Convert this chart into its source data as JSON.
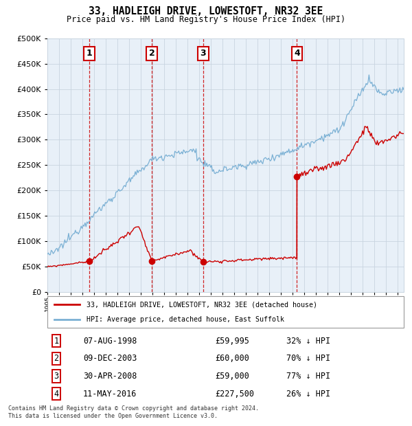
{
  "title": "33, HADLEIGH DRIVE, LOWESTOFT, NR32 3EE",
  "subtitle": "Price paid vs. HM Land Registry's House Price Index (HPI)",
  "footer1": "Contains HM Land Registry data © Crown copyright and database right 2024.",
  "footer2": "This data is licensed under the Open Government Licence v3.0.",
  "legend_red": "33, HADLEIGH DRIVE, LOWESTOFT, NR32 3EE (detached house)",
  "legend_blue": "HPI: Average price, detached house, East Suffolk",
  "transactions": [
    {
      "num": 1,
      "date": "07-AUG-1998",
      "year": 1998.6,
      "price": 59995,
      "pct": "32% ↓ HPI"
    },
    {
      "num": 2,
      "date": "09-DEC-2003",
      "year": 2003.93,
      "price": 60000,
      "pct": "70% ↓ HPI"
    },
    {
      "num": 3,
      "date": "30-APR-2008",
      "year": 2008.33,
      "price": 59000,
      "pct": "77% ↓ HPI"
    },
    {
      "num": 4,
      "date": "11-MAY-2016",
      "year": 2016.36,
      "price": 227500,
      "pct": "26% ↓ HPI"
    }
  ],
  "ylim": [
    0,
    500000
  ],
  "xlim_start": 1995.0,
  "xlim_end": 2025.5,
  "plot_bg": "#e8f0f8",
  "grid_color": "#c8d4e0",
  "red_color": "#cc0000",
  "blue_color": "#7ab0d4",
  "dashed_color": "#cc0000"
}
